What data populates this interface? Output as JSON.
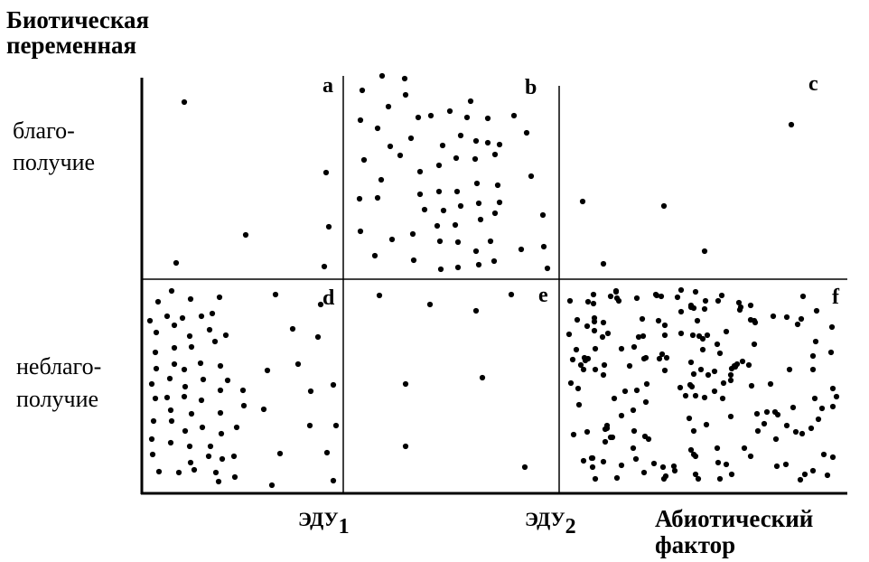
{
  "y_axis_title_lines": [
    "Биотическая",
    "переменная"
  ],
  "x_axis_title_lines": [
    "Абиотический",
    "фактор"
  ],
  "row_labels": {
    "upper": [
      "благо-",
      "получие"
    ],
    "lower": [
      "неблаго-",
      "получие"
    ]
  },
  "thresholds": [
    {
      "base": "ЭДУ",
      "sub": "1"
    },
    {
      "base": "ЭДУ",
      "sub": "2"
    }
  ],
  "quadrant_letters": [
    "a",
    "b",
    "c",
    "d",
    "e",
    "f"
  ],
  "colors": {
    "ink": "#000000",
    "background": "#ffffff"
  }
}
